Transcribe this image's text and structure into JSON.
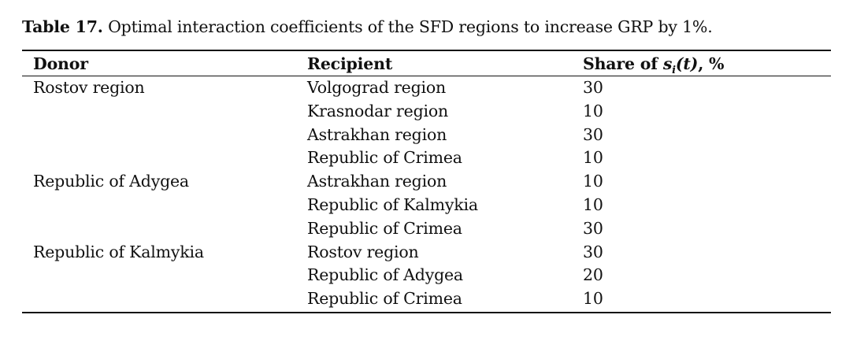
{
  "caption": {
    "label": "Table 17.",
    "text": " Optimal interaction coefficients of the SFD regions to increase GRP by 1%."
  },
  "headers": {
    "donor": "Donor",
    "recipient": "Recipient",
    "share_prefix": "Share of ",
    "share_var": "s",
    "share_sub": "i",
    "share_arg": "(t)",
    "share_suffix": ", %"
  },
  "rows": [
    {
      "donor": "Rostov region",
      "recipient": "Volgograd region",
      "share": "30"
    },
    {
      "donor": "",
      "recipient": "Krasnodar region",
      "share": "10"
    },
    {
      "donor": "",
      "recipient": "Astrakhan region",
      "share": "30"
    },
    {
      "donor": "",
      "recipient": "Republic of Crimea",
      "share": "10"
    },
    {
      "donor": "Republic of Adygea",
      "recipient": "Astrakhan region",
      "share": "10"
    },
    {
      "donor": "",
      "recipient": "Republic of Kalmykia",
      "share": "10"
    },
    {
      "donor": "",
      "recipient": "Republic of Crimea",
      "share": "30"
    },
    {
      "donor": "Republic of Kalmykia",
      "recipient": "Rostov region",
      "share": "30"
    },
    {
      "donor": "",
      "recipient": "Republic of Adygea",
      "share": "20"
    },
    {
      "donor": "",
      "recipient": "Republic of Crimea",
      "share": "10"
    }
  ]
}
